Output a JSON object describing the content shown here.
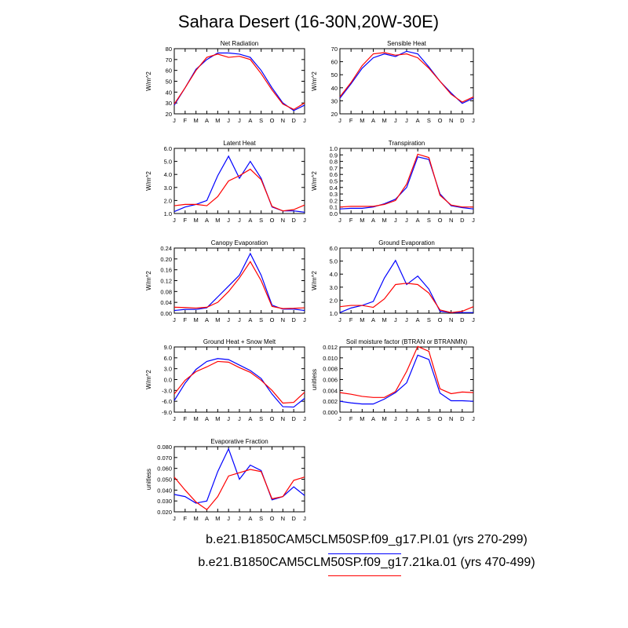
{
  "title": "Sahara Desert (16-30N,20W-30E)",
  "month_labels": [
    "J",
    "F",
    "M",
    "A",
    "M",
    "J",
    "J",
    "A",
    "S",
    "O",
    "N",
    "D",
    "J"
  ],
  "colors": {
    "pi": "#0000ff",
    "ka21": "#ff0000",
    "axis": "#000000"
  },
  "legend": [
    {
      "label": "b.e21.B1850CAM5CLM50SP.f09_g17.PI.01 (yrs 270-299)",
      "color": "#0000ff"
    },
    {
      "label": "b.e21.B1850CAM5CLM50SP.f09_g17.21ka.01 (yrs 470-499)",
      "color": "#ff0000"
    }
  ],
  "chart_data": [
    {
      "type": "line",
      "title": "Net Radiation",
      "ylabel": "W/m^2",
      "ylim": [
        20,
        80
      ],
      "yticks": [
        "20",
        "30",
        "40",
        "50",
        "60",
        "70",
        "80"
      ],
      "categories": [
        "J",
        "F",
        "M",
        "A",
        "M",
        "J",
        "J",
        "A",
        "S",
        "O",
        "N",
        "D",
        "J"
      ],
      "series": [
        {
          "name": "PI",
          "values": [
            28,
            44,
            61,
            70,
            76,
            76,
            75,
            72,
            60,
            44,
            30,
            23,
            28
          ]
        },
        {
          "name": "21ka",
          "values": [
            29,
            44,
            60,
            72,
            75,
            72,
            73,
            70,
            57,
            42,
            29,
            24,
            30
          ]
        }
      ]
    },
    {
      "type": "line",
      "title": "Sensible Heat",
      "ylabel": "W/m^2",
      "ylim": [
        20,
        70
      ],
      "yticks": [
        "20",
        "30",
        "40",
        "50",
        "60",
        "70"
      ],
      "categories": [
        "J",
        "F",
        "M",
        "A",
        "M",
        "J",
        "J",
        "A",
        "S",
        "O",
        "N",
        "D",
        "J"
      ],
      "series": [
        {
          "name": "PI",
          "values": [
            32,
            43,
            55,
            63,
            66,
            64,
            68,
            66,
            56,
            45,
            36,
            28,
            32
          ]
        },
        {
          "name": "21ka",
          "values": [
            33,
            44,
            57,
            66,
            67,
            65,
            66,
            63,
            55,
            45,
            35,
            29,
            33
          ]
        }
      ]
    },
    {
      "type": "line",
      "title": "Latent Heat",
      "ylabel": "W/m^2",
      "ylim": [
        1.0,
        6.0
      ],
      "yticks": [
        "1.0",
        "2.0",
        "3.0",
        "4.0",
        "5.0",
        "6.0"
      ],
      "categories": [
        "J",
        "F",
        "M",
        "A",
        "M",
        "J",
        "J",
        "A",
        "S",
        "O",
        "N",
        "D",
        "J"
      ],
      "series": [
        {
          "name": "PI",
          "values": [
            1.15,
            1.5,
            1.7,
            2.0,
            3.9,
            5.4,
            3.7,
            5.0,
            3.7,
            1.5,
            1.2,
            1.2,
            1.1
          ]
        },
        {
          "name": "21ka",
          "values": [
            1.6,
            1.7,
            1.7,
            1.6,
            2.3,
            3.5,
            3.9,
            4.4,
            3.6,
            1.55,
            1.2,
            1.3,
            1.65
          ]
        }
      ]
    },
    {
      "type": "line",
      "title": "Transpiration",
      "ylabel": "W/m^2",
      "ylim": [
        0.0,
        1.0
      ],
      "yticks": [
        "0.0",
        "0.1",
        "0.2",
        "0.3",
        "0.4",
        "0.5",
        "0.6",
        "0.7",
        "0.8",
        "0.9",
        "1.0"
      ],
      "categories": [
        "J",
        "F",
        "M",
        "A",
        "M",
        "J",
        "J",
        "A",
        "S",
        "O",
        "N",
        "D",
        "J"
      ],
      "series": [
        {
          "name": "PI",
          "values": [
            0.07,
            0.08,
            0.08,
            0.1,
            0.15,
            0.22,
            0.4,
            0.87,
            0.83,
            0.3,
            0.12,
            0.09,
            0.07
          ]
        },
        {
          "name": "21ka",
          "values": [
            0.1,
            0.11,
            0.11,
            0.11,
            0.14,
            0.2,
            0.45,
            0.91,
            0.86,
            0.28,
            0.13,
            0.1,
            0.1
          ]
        }
      ]
    },
    {
      "type": "line",
      "title": "Canopy Evaporation",
      "ylabel": "W/m^2",
      "ylim": [
        0.0,
        0.24
      ],
      "yticks": [
        "0.00",
        "0.04",
        "0.08",
        "0.12",
        "0.16",
        "0.20",
        "0.24"
      ],
      "categories": [
        "J",
        "F",
        "M",
        "A",
        "M",
        "J",
        "J",
        "A",
        "S",
        "O",
        "N",
        "D",
        "J"
      ],
      "series": [
        {
          "name": "PI",
          "values": [
            0.01,
            0.014,
            0.014,
            0.02,
            0.06,
            0.1,
            0.14,
            0.22,
            0.14,
            0.03,
            0.015,
            0.015,
            0.01
          ]
        },
        {
          "name": "21ka",
          "values": [
            0.022,
            0.021,
            0.019,
            0.022,
            0.04,
            0.08,
            0.13,
            0.19,
            0.12,
            0.025,
            0.017,
            0.018,
            0.02
          ]
        }
      ]
    },
    {
      "type": "line",
      "title": "Ground Evaporation",
      "ylabel": "W/m^2",
      "ylim": [
        1.0,
        6.0
      ],
      "yticks": [
        "1.0",
        "2.0",
        "3.0",
        "4.0",
        "5.0",
        "6.0"
      ],
      "categories": [
        "J",
        "F",
        "M",
        "A",
        "M",
        "J",
        "J",
        "A",
        "S",
        "O",
        "N",
        "D",
        "J"
      ],
      "series": [
        {
          "name": "PI",
          "values": [
            1.05,
            1.4,
            1.6,
            1.9,
            3.7,
            5.05,
            3.2,
            3.85,
            2.85,
            1.15,
            1.05,
            1.05,
            1.05
          ]
        },
        {
          "name": "21ka",
          "values": [
            1.5,
            1.6,
            1.6,
            1.45,
            2.1,
            3.2,
            3.3,
            3.2,
            2.55,
            1.25,
            1.05,
            1.15,
            1.5
          ]
        }
      ]
    },
    {
      "type": "line",
      "title": "Ground Heat + Snow Melt",
      "ylabel": "W/m^2",
      "ylim": [
        -9.0,
        9.0
      ],
      "yticks": [
        "-9.0",
        "-6.0",
        "-3.0",
        "0.0",
        "3.0",
        "6.0",
        "9.0"
      ],
      "categories": [
        "J",
        "F",
        "M",
        "A",
        "M",
        "J",
        "J",
        "A",
        "S",
        "O",
        "N",
        "D",
        "J"
      ],
      "series": [
        {
          "name": "PI",
          "values": [
            -5.8,
            -1.0,
            2.8,
            5.0,
            5.8,
            5.5,
            4.0,
            2.5,
            0.3,
            -4.0,
            -7.5,
            -7.6,
            -5.2
          ]
        },
        {
          "name": "21ka",
          "values": [
            -4.0,
            -0.2,
            2.2,
            3.5,
            5.0,
            4.8,
            3.3,
            2.0,
            -0.2,
            -3.0,
            -6.5,
            -6.3,
            -3.5
          ]
        }
      ]
    },
    {
      "type": "line",
      "title": "Soil moisture factor (BTRAN or BTRANMN)",
      "ylabel": "unitless",
      "ylim": [
        0.0,
        0.012
      ],
      "yticks": [
        "0.000",
        "0.002",
        "0.004",
        "0.006",
        "0.008",
        "0.010",
        "0.012"
      ],
      "categories": [
        "J",
        "F",
        "M",
        "A",
        "M",
        "J",
        "J",
        "A",
        "S",
        "O",
        "N",
        "D",
        "J"
      ],
      "series": [
        {
          "name": "PI",
          "values": [
            0.002,
            0.0017,
            0.0015,
            0.0015,
            0.0024,
            0.0036,
            0.0054,
            0.0105,
            0.0097,
            0.0035,
            0.0021,
            0.0021,
            0.002
          ]
        },
        {
          "name": "21ka",
          "values": [
            0.0036,
            0.0033,
            0.0029,
            0.0027,
            0.0027,
            0.0038,
            0.0075,
            0.0121,
            0.0112,
            0.0043,
            0.0034,
            0.0037,
            0.0036
          ]
        }
      ]
    },
    {
      "type": "line",
      "title": "Evaporative Fraction",
      "ylabel": "unitless",
      "ylim": [
        0.02,
        0.08
      ],
      "yticks": [
        "0.020",
        "0.030",
        "0.040",
        "0.050",
        "0.060",
        "0.070",
        "0.080"
      ],
      "categories": [
        "J",
        "F",
        "M",
        "A",
        "M",
        "J",
        "J",
        "A",
        "S",
        "O",
        "N",
        "D",
        "J"
      ],
      "series": [
        {
          "name": "PI",
          "values": [
            0.036,
            0.034,
            0.028,
            0.03,
            0.057,
            0.078,
            0.05,
            0.063,
            0.058,
            0.031,
            0.034,
            0.043,
            0.035
          ]
        },
        {
          "name": "21ka",
          "values": [
            0.052,
            0.04,
            0.029,
            0.022,
            0.034,
            0.053,
            0.056,
            0.059,
            0.057,
            0.032,
            0.034,
            0.049,
            0.052
          ]
        }
      ]
    }
  ]
}
